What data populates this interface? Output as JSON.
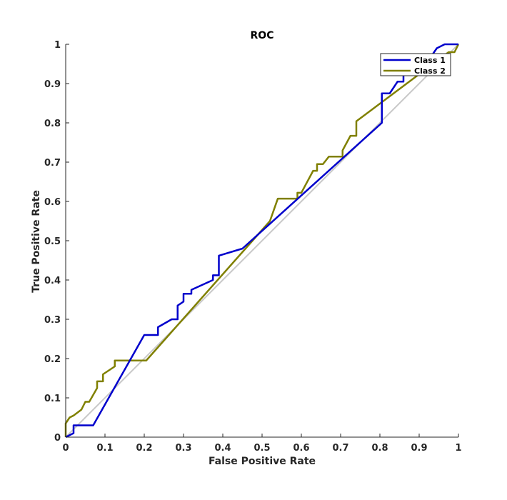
{
  "chart_data": {
    "type": "line",
    "title": "ROC",
    "xlabel": "False Positive Rate",
    "ylabel": "True Positive Rate",
    "xlim": [
      0,
      1
    ],
    "ylim": [
      0,
      1
    ],
    "xticks": [
      "0",
      "0.1",
      "0.2",
      "0.3",
      "0.4",
      "0.5",
      "0.6",
      "0.7",
      "0.8",
      "0.9",
      "1"
    ],
    "yticks": [
      "0",
      "0.1",
      "0.2",
      "0.3",
      "0.4",
      "0.5",
      "0.6",
      "0.7",
      "0.8",
      "0.9",
      "1"
    ],
    "grid": false,
    "legend_position": "top-right",
    "series": [
      {
        "name": "Class 1",
        "color": "#0000cc",
        "points": [
          [
            0,
            0
          ],
          [
            0.02,
            0.01
          ],
          [
            0.02,
            0.03
          ],
          [
            0.07,
            0.03
          ],
          [
            0.2,
            0.26
          ],
          [
            0.235,
            0.26
          ],
          [
            0.235,
            0.28
          ],
          [
            0.27,
            0.3
          ],
          [
            0.285,
            0.3
          ],
          [
            0.285,
            0.335
          ],
          [
            0.3,
            0.345
          ],
          [
            0.3,
            0.365
          ],
          [
            0.32,
            0.365
          ],
          [
            0.32,
            0.375
          ],
          [
            0.375,
            0.4
          ],
          [
            0.375,
            0.412
          ],
          [
            0.39,
            0.412
          ],
          [
            0.39,
            0.462
          ],
          [
            0.45,
            0.48
          ],
          [
            0.805,
            0.8
          ],
          [
            0.805,
            0.875
          ],
          [
            0.825,
            0.875
          ],
          [
            0.845,
            0.905
          ],
          [
            0.86,
            0.905
          ],
          [
            0.86,
            0.925
          ],
          [
            0.9,
            0.925
          ],
          [
            0.945,
            0.99
          ],
          [
            0.965,
            1
          ],
          [
            1,
            1
          ]
        ]
      },
      {
        "name": "Class 2",
        "color": "#808000",
        "points": [
          [
            0,
            0
          ],
          [
            0,
            0.035
          ],
          [
            0.01,
            0.05
          ],
          [
            0.02,
            0.055
          ],
          [
            0.04,
            0.07
          ],
          [
            0.05,
            0.09
          ],
          [
            0.06,
            0.09
          ],
          [
            0.08,
            0.125
          ],
          [
            0.08,
            0.142
          ],
          [
            0.095,
            0.142
          ],
          [
            0.095,
            0.16
          ],
          [
            0.125,
            0.18
          ],
          [
            0.125,
            0.195
          ],
          [
            0.205,
            0.195
          ],
          [
            0.52,
            0.55
          ],
          [
            0.54,
            0.607
          ],
          [
            0.59,
            0.607
          ],
          [
            0.59,
            0.622
          ],
          [
            0.6,
            0.622
          ],
          [
            0.63,
            0.678
          ],
          [
            0.64,
            0.678
          ],
          [
            0.64,
            0.695
          ],
          [
            0.655,
            0.695
          ],
          [
            0.67,
            0.714
          ],
          [
            0.705,
            0.714
          ],
          [
            0.705,
            0.73
          ],
          [
            0.725,
            0.767
          ],
          [
            0.74,
            0.767
          ],
          [
            0.74,
            0.804
          ],
          [
            0.975,
            0.98
          ],
          [
            0.99,
            0.98
          ],
          [
            1,
            1
          ]
        ]
      }
    ],
    "reference_line": {
      "color": "#c8c8c8",
      "points": [
        [
          0,
          0
        ],
        [
          1,
          1
        ]
      ]
    }
  }
}
